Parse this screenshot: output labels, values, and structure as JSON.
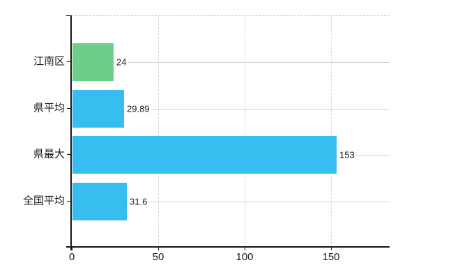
{
  "chart_data": {
    "type": "bar",
    "orientation": "horizontal",
    "title": "",
    "xlabel": "",
    "ylabel": "",
    "categories": [
      "江南区",
      "県平均",
      "県最大",
      "全国平均"
    ],
    "values": [
      24,
      29.89,
      153,
      31.6
    ],
    "bar_colors": [
      "#6fcd8a",
      "#38bdf0",
      "#38bdf0",
      "#38bdf0"
    ],
    "x_ticks": [
      0,
      50,
      100,
      150
    ],
    "xlim": [
      0,
      184
    ],
    "legend": "none",
    "grid": {
      "vertical_gridlines": "dashed",
      "row_center_lines": "solid",
      "top_border": "dashed"
    },
    "colors": {
      "green_bar": "#6fcd8a",
      "blue_bar": "#38bdf0",
      "vertical_grid": "#d6d6d6",
      "row_line": "#ccd4cc",
      "axis": "#161616",
      "text": "#1a1a1a",
      "background": "#ffffff"
    }
  }
}
